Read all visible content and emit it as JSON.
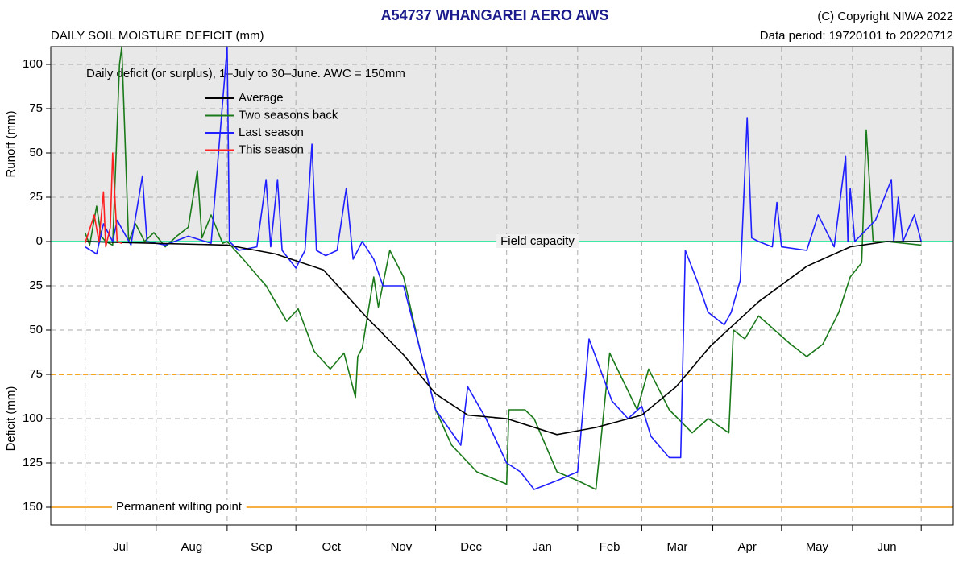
{
  "chart_data": {
    "type": "line",
    "title": "A54737  WHANGAREI AERO AWS",
    "subtitle": "DAILY SOIL MOISTURE DEFICIT (mm)",
    "copyright": "(C) Copyright NIWA  2022",
    "data_period": "Data period:  19720101  to  20220712",
    "annotation": "Daily deficit (or surplus), 1–July to 30–June.  AWC = 150mm",
    "ylabel_top": "Runoff (mm)",
    "ylabel_bottom": "Deficit (mm)",
    "xlim": [
      -15,
      379
    ],
    "ylim": [
      -160,
      110
    ],
    "xticks": [
      0,
      31,
      62,
      92,
      123,
      153,
      184,
      215,
      243,
      274,
      304,
      335,
      365
    ],
    "months": [
      "Jul",
      "Aug",
      "Sep",
      "Oct",
      "Nov",
      "Dec",
      "Jan",
      "Feb",
      "Mar",
      "Apr",
      "May",
      "Jun"
    ],
    "yticks": [
      100,
      75,
      50,
      25,
      0,
      {
        "value": -25,
        "label": "25"
      },
      {
        "value": -50,
        "label": "50"
      },
      {
        "value": -75,
        "label": "75"
      },
      {
        "value": -100,
        "label": "100"
      },
      {
        "value": -125,
        "label": "125"
      },
      {
        "value": -150,
        "label": "150"
      }
    ],
    "grid": true,
    "reference_lines": [
      {
        "value": 0,
        "label": "Field capacity",
        "color": "#40e8a8",
        "dashed": false
      },
      {
        "value": -75,
        "color": "#f5a623",
        "dashed": true
      },
      {
        "value": -150,
        "label": "Permanent wilting point",
        "color": "#f5b041",
        "dashed": false
      }
    ],
    "series": [
      {
        "name": "Average",
        "color": "#000000",
        "x": [
          0,
          30,
          62,
          83,
          104,
          123,
          139,
          153,
          167,
          184,
          206,
          223,
          243,
          258,
          273,
          294,
          315,
          334,
          350,
          365
        ],
        "values": [
          0,
          -1,
          -2,
          -7,
          -16,
          -43,
          -64,
          -86,
          -98,
          -100,
          -109,
          -105,
          -98,
          -82,
          -59,
          -34,
          -14,
          -3,
          0,
          0
        ]
      },
      {
        "name": "Two seasons back",
        "color": "#1a7a1a",
        "x": [
          0,
          2,
          5,
          7,
          9,
          12,
          15,
          16,
          19,
          22,
          26,
          30,
          35,
          40,
          45,
          49,
          51,
          55,
          60,
          62,
          69,
          79,
          88,
          93,
          100,
          107,
          113,
          118,
          119,
          121,
          126,
          128,
          133,
          139,
          146,
          153,
          160,
          171,
          184,
          185,
          192,
          196,
          206,
          215,
          223,
          229,
          241,
          246,
          255,
          265,
          272,
          281,
          283,
          288,
          294,
          308,
          315,
          322,
          329,
          334,
          339,
          341,
          344,
          350,
          365
        ],
        "values": [
          5,
          -2,
          20,
          3,
          0,
          -2,
          100,
          110,
          0,
          10,
          0,
          5,
          -3,
          3,
          8,
          40,
          2,
          15,
          -1,
          0,
          -10,
          -25,
          -45,
          -38,
          -62,
          -72,
          -63,
          -88,
          -65,
          -60,
          -20,
          -37,
          -5,
          -20,
          -60,
          -95,
          -115,
          -130,
          -137,
          -95,
          -95,
          -100,
          -130,
          -135,
          -140,
          -63,
          -95,
          -72,
          -95,
          -108,
          -100,
          -108,
          -50,
          -55,
          -42,
          -58,
          -65,
          -58,
          -40,
          -20,
          -12,
          63,
          0,
          0,
          -2
        ]
      },
      {
        "name": "Last season",
        "color": "#1f1fff",
        "x": [
          0,
          5,
          8,
          12,
          14,
          20,
          25,
          27,
          35,
          45,
          55,
          62,
          63,
          67,
          75,
          79,
          81,
          84,
          86,
          92,
          96,
          99,
          101,
          105,
          110,
          114,
          117,
          121,
          126,
          130,
          135,
          139,
          146,
          153,
          164,
          167,
          175,
          184,
          190,
          196,
          206,
          215,
          220,
          230,
          237,
          243,
          247,
          255,
          260,
          262,
          268,
          272,
          279,
          282,
          286,
          289,
          291,
          294,
          300,
          302,
          304,
          315,
          320,
          327,
          332,
          333,
          334,
          336,
          345,
          352,
          353,
          355,
          357,
          362,
          365
        ],
        "values": [
          -3,
          -7,
          10,
          0,
          12,
          -2,
          37,
          0,
          -2,
          3,
          -1,
          110,
          0,
          -5,
          -3,
          35,
          -3,
          35,
          -5,
          -15,
          -5,
          55,
          -5,
          -8,
          -5,
          30,
          -10,
          0,
          -10,
          -25,
          -25,
          -25,
          -60,
          -95,
          -115,
          -82,
          -100,
          -125,
          -130,
          -140,
          -135,
          -130,
          -55,
          -90,
          -100,
          -93,
          -110,
          -122,
          -122,
          -5,
          -25,
          -40,
          -47,
          -40,
          -22,
          70,
          2,
          0,
          -3,
          22,
          -3,
          -5,
          15,
          -3,
          48,
          0,
          30,
          0,
          12,
          35,
          0,
          25,
          0,
          15,
          0
        ]
      },
      {
        "name": "This season",
        "color": "#ff2020",
        "x": [
          0,
          4,
          6,
          8,
          9,
          11,
          12,
          14,
          16
        ],
        "values": [
          -1,
          15,
          0,
          28,
          -3,
          8,
          50,
          0,
          -1
        ]
      }
    ]
  }
}
